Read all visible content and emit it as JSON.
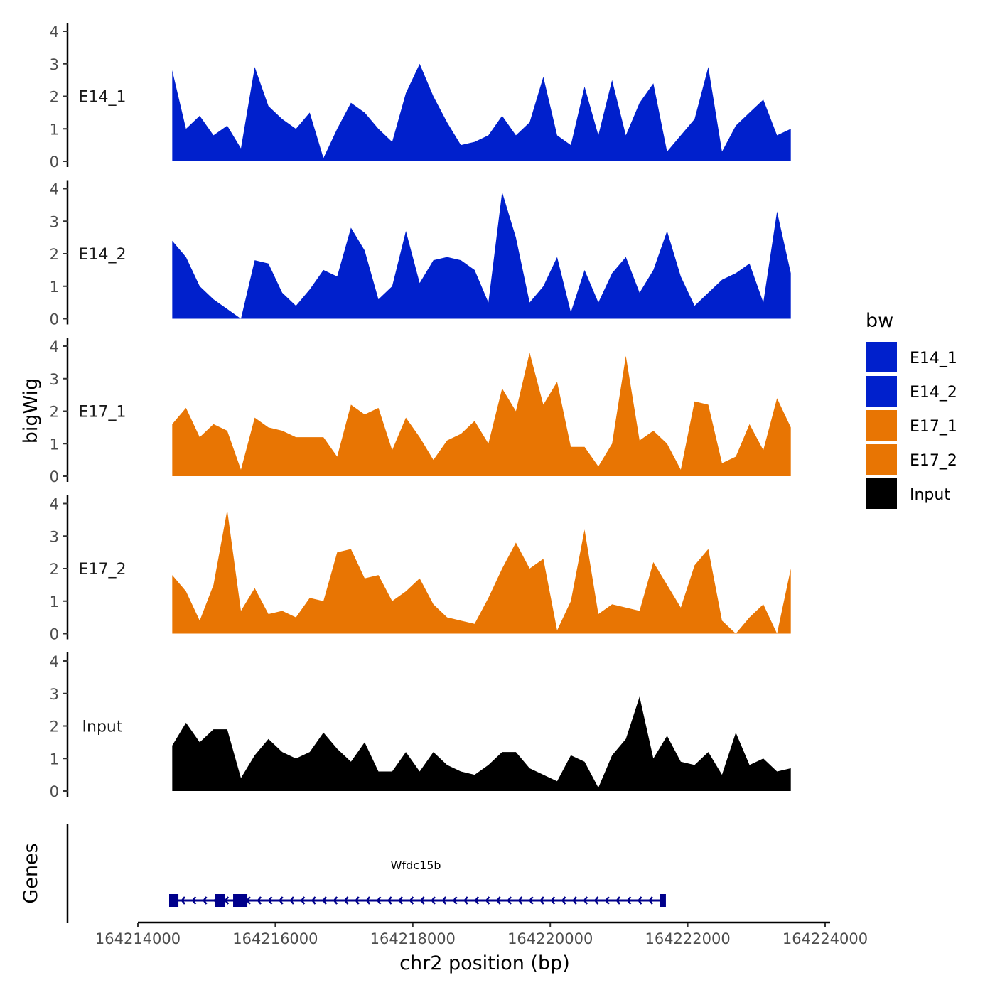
{
  "chart_data": {
    "type": "area",
    "title": "",
    "xlabel": "chr2 position (bp)",
    "ylabel": "bigWig",
    "gene_track_label": "Genes",
    "xlim": [
      164213500,
      164224200
    ],
    "x_ticks": [
      164214000,
      164216000,
      164218000,
      164220000,
      164222000,
      164224000
    ],
    "x_tick_labels": [
      "164214000",
      "164216000",
      "164218000",
      "164220000",
      "164222000",
      "164224000"
    ],
    "ylim": [
      0,
      4.3
    ],
    "y_ticks": [
      0,
      1,
      2,
      3,
      4
    ],
    "y_tick_labels": [
      "0",
      "1",
      "2",
      "3",
      "4"
    ],
    "grid": false,
    "x_start": 164214500,
    "x_step": 200,
    "series": [
      {
        "name": "E14_1",
        "color": "#0020CC",
        "values": [
          2.8,
          1.0,
          1.4,
          0.8,
          1.1,
          0.4,
          2.9,
          1.7,
          1.3,
          1.0,
          1.5,
          0.1,
          1.0,
          1.8,
          1.5,
          1.0,
          0.6,
          2.1,
          3.0,
          2.0,
          1.2,
          0.5,
          0.6,
          0.8,
          1.4,
          0.8,
          1.2,
          2.6,
          0.8,
          0.5,
          2.3,
          0.8,
          2.5,
          0.8,
          1.8,
          2.4,
          0.3,
          0.8,
          1.3,
          2.9,
          0.3,
          1.1,
          1.5,
          1.9,
          0.8,
          1.0
        ]
      },
      {
        "name": "E14_2",
        "color": "#0020CC",
        "values": [
          2.4,
          1.9,
          1.0,
          0.6,
          0.3,
          0.0,
          1.8,
          1.7,
          0.8,
          0.4,
          0.9,
          1.5,
          1.3,
          2.8,
          2.1,
          0.6,
          1.0,
          2.7,
          1.1,
          1.8,
          1.9,
          1.8,
          1.5,
          0.5,
          3.9,
          2.5,
          0.5,
          1.0,
          1.9,
          0.2,
          1.5,
          0.5,
          1.4,
          1.9,
          0.8,
          1.5,
          2.7,
          1.3,
          0.4,
          0.8,
          1.2,
          1.4,
          1.7,
          0.5,
          3.3,
          1.4
        ]
      },
      {
        "name": "E17_1",
        "color": "#E87503",
        "values": [
          1.6,
          2.1,
          1.2,
          1.6,
          1.4,
          0.2,
          1.8,
          1.5,
          1.4,
          1.2,
          1.2,
          1.2,
          0.6,
          2.2,
          1.9,
          2.1,
          0.8,
          1.8,
          1.2,
          0.5,
          1.1,
          1.3,
          1.7,
          1.0,
          2.7,
          2.0,
          3.8,
          2.2,
          2.9,
          0.9,
          0.9,
          0.3,
          1.0,
          3.7,
          1.1,
          1.4,
          1.0,
          0.2,
          2.3,
          2.2,
          0.4,
          0.6,
          1.6,
          0.8,
          2.4,
          1.5
        ]
      },
      {
        "name": "E17_2",
        "color": "#E87503",
        "values": [
          1.8,
          1.3,
          0.4,
          1.5,
          3.8,
          0.7,
          1.4,
          0.6,
          0.7,
          0.5,
          1.1,
          1.0,
          2.5,
          2.6,
          1.7,
          1.8,
          1.0,
          1.3,
          1.7,
          0.9,
          0.5,
          0.4,
          0.3,
          1.1,
          2.0,
          2.8,
          2.0,
          2.3,
          0.1,
          1.0,
          3.2,
          0.6,
          0.9,
          0.8,
          0.7,
          2.2,
          1.5,
          0.8,
          2.1,
          2.6,
          0.4,
          0.0,
          0.5,
          0.9,
          0.0,
          2.0
        ]
      },
      {
        "name": "Input",
        "color": "#000000",
        "values": [
          1.4,
          2.1,
          1.5,
          1.9,
          1.9,
          0.4,
          1.1,
          1.6,
          1.2,
          1.0,
          1.2,
          1.8,
          1.3,
          0.9,
          1.5,
          0.6,
          0.6,
          1.2,
          0.6,
          1.2,
          0.8,
          0.6,
          0.5,
          0.8,
          1.2,
          1.2,
          0.7,
          0.5,
          0.3,
          1.1,
          0.9,
          0.1,
          1.1,
          1.6,
          2.9,
          1.0,
          1.7,
          0.9,
          0.8,
          1.2,
          0.5,
          1.8,
          0.8,
          1.0,
          0.6,
          0.7
        ]
      }
    ],
    "genes": [
      {
        "name": "Wfdc15b",
        "strand": "-",
        "start": 164214496,
        "end": 164221642,
        "color": "#00008B",
        "exons": [
          [
            164214455,
            164214590
          ],
          [
            164215117,
            164215272
          ],
          [
            164215386,
            164215593
          ],
          [
            164221600,
            164221683
          ]
        ]
      }
    ],
    "legend": {
      "title": "bw",
      "position": "right",
      "entries": [
        "E14_1",
        "E14_2",
        "E17_1",
        "E17_2",
        "Input"
      ]
    }
  }
}
